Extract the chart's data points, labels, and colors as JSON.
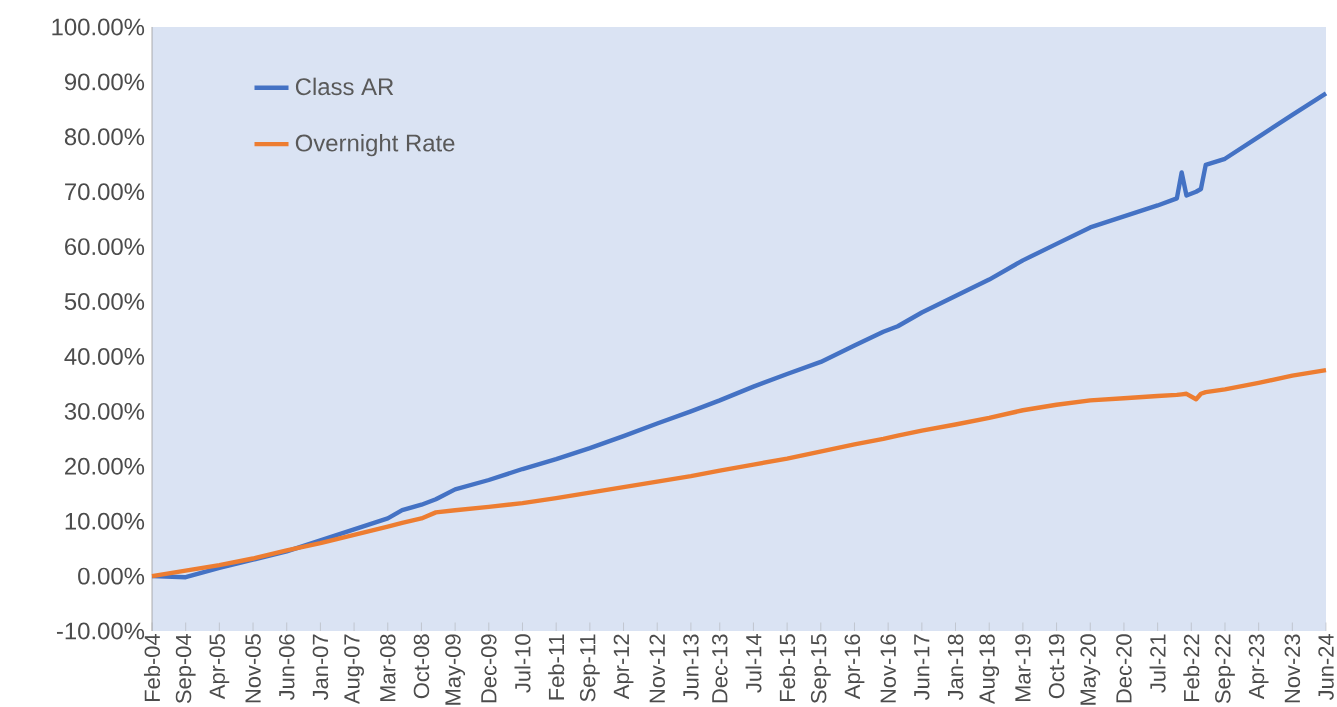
{
  "chart_data": {
    "type": "line",
    "x": [
      "2004-02",
      "2004-09",
      "2005-04",
      "2005-11",
      "2006-06",
      "2007-01",
      "2007-08",
      "2008-03",
      "2008-06",
      "2008-10",
      "2009-01",
      "2009-05",
      "2009-12",
      "2010-07",
      "2011-02",
      "2011-09",
      "2012-04",
      "2012-11",
      "2013-06",
      "2013-12",
      "2014-07",
      "2015-02",
      "2015-09",
      "2016-04",
      "2016-10",
      "2017-01",
      "2017-06",
      "2018-01",
      "2018-08",
      "2019-03",
      "2019-10",
      "2020-05",
      "2020-12",
      "2021-07",
      "2021-11",
      "2021-12",
      "2022-01",
      "2022-03",
      "2022-04",
      "2022-05",
      "2022-09",
      "2023-04",
      "2023-11",
      "2024-06"
    ],
    "series": [
      {
        "name": "Class AR",
        "color": "#4472c4",
        "values": [
          0,
          -0.2,
          1.5,
          3.0,
          4.5,
          6.5,
          8.5,
          10.5,
          12,
          13,
          14,
          15.8,
          17.5,
          19.5,
          21.3,
          23.3,
          25.5,
          27.8,
          30,
          32,
          34.5,
          36.8,
          39,
          42,
          44.5,
          45.5,
          48,
          51,
          54,
          57.5,
          60.5,
          63.5,
          65.5,
          67.5,
          68.8,
          73.5,
          69.3,
          70,
          70.5,
          74.9,
          76,
          80,
          84,
          87.9
        ]
      },
      {
        "name": "Overnight Rate",
        "color": "#ed7d31",
        "values": [
          0,
          1,
          2,
          3.2,
          4.7,
          6,
          7.5,
          9,
          9.7,
          10.5,
          11.6,
          12,
          12.6,
          13.3,
          14.2,
          15.2,
          16.2,
          17.2,
          18.2,
          19.2,
          20.3,
          21.4,
          22.7,
          24,
          25,
          25.6,
          26.5,
          27.6,
          28.8,
          30.2,
          31.2,
          32,
          32.4,
          32.8,
          33,
          33.1,
          33.2,
          32.2,
          33.2,
          33.5,
          34,
          35.2,
          36.5,
          37.5
        ]
      }
    ],
    "xlim": [
      "2004-02",
      "2024-06"
    ],
    "xticks": [
      {
        "value": "2004-02",
        "label": "Feb-04"
      },
      {
        "value": "2004-09",
        "label": "Sep-04"
      },
      {
        "value": "2005-04",
        "label": "Apr-05"
      },
      {
        "value": "2005-11",
        "label": "Nov-05"
      },
      {
        "value": "2006-06",
        "label": "Jun-06"
      },
      {
        "value": "2007-01",
        "label": "Jan-07"
      },
      {
        "value": "2007-08",
        "label": "Aug-07"
      },
      {
        "value": "2008-03",
        "label": "Mar-08"
      },
      {
        "value": "2008-10",
        "label": "Oct-08"
      },
      {
        "value": "2009-05",
        "label": "May-09"
      },
      {
        "value": "2009-12",
        "label": "Dec-09"
      },
      {
        "value": "2010-07",
        "label": "Jul-10"
      },
      {
        "value": "2011-02",
        "label": "Feb-11"
      },
      {
        "value": "2011-09",
        "label": "Sep-11"
      },
      {
        "value": "2012-04",
        "label": "Apr-12"
      },
      {
        "value": "2012-11",
        "label": "Nov-12"
      },
      {
        "value": "2013-06",
        "label": "Jun-13"
      },
      {
        "value": "2013-12",
        "label": "Dec-13"
      },
      {
        "value": "2014-07",
        "label": "Jul-14"
      },
      {
        "value": "2015-02",
        "label": "Feb-15"
      },
      {
        "value": "2015-09",
        "label": "Sep-15"
      },
      {
        "value": "2016-04",
        "label": "Apr-16"
      },
      {
        "value": "2016-11",
        "label": "Nov-16"
      },
      {
        "value": "2017-06",
        "label": "Jun-17"
      },
      {
        "value": "2018-01",
        "label": "Jan-18"
      },
      {
        "value": "2018-08",
        "label": "Aug-18"
      },
      {
        "value": "2019-03",
        "label": "Mar-19"
      },
      {
        "value": "2019-10",
        "label": "Oct-19"
      },
      {
        "value": "2020-05",
        "label": "May-20"
      },
      {
        "value": "2020-12",
        "label": "Dec-20"
      },
      {
        "value": "2021-07",
        "label": "Jul-21"
      },
      {
        "value": "2022-02",
        "label": "Feb-22"
      },
      {
        "value": "2022-09",
        "label": "Sep-22"
      },
      {
        "value": "2023-04",
        "label": "Apr-23"
      },
      {
        "value": "2023-11",
        "label": "Nov-23"
      },
      {
        "value": "2024-06",
        "label": "Jun-24"
      }
    ],
    "ylim": [
      -10,
      100
    ],
    "yticks": [
      {
        "value": -10,
        "label": "-10.00%"
      },
      {
        "value": 0,
        "label": "0.00%"
      },
      {
        "value": 10,
        "label": "10.00%"
      },
      {
        "value": 20,
        "label": "20.00%"
      },
      {
        "value": 30,
        "label": "30.00%"
      },
      {
        "value": 40,
        "label": "40.00%"
      },
      {
        "value": 50,
        "label": "50.00%"
      },
      {
        "value": 60,
        "label": "60.00%"
      },
      {
        "value": 70,
        "label": "70.00%"
      },
      {
        "value": 80,
        "label": "80.00%"
      },
      {
        "value": 90,
        "label": "90.00%"
      },
      {
        "value": 100,
        "label": "100.00%"
      }
    ],
    "legend": "top left",
    "marker": "none",
    "line_style": "solid"
  }
}
